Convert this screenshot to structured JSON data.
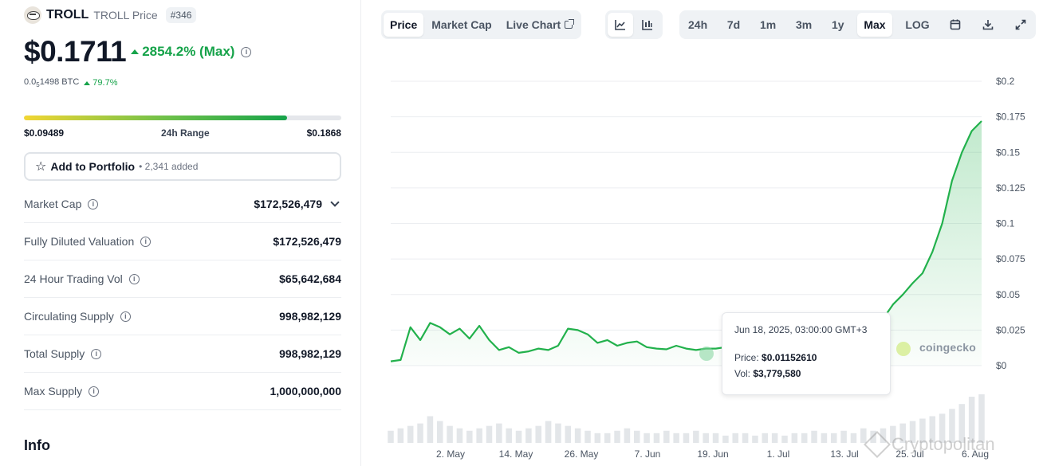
{
  "coin": {
    "name": "TROLL",
    "subtitle": "TROLL Price",
    "rank": "#346",
    "price": "$0.1711",
    "change": "2854.2% (Max)",
    "btc_prefix": "0.0",
    "btc_sub": "5",
    "btc_rest": "1498 BTC",
    "btc_change": "79.7%"
  },
  "range": {
    "low": "$0.09489",
    "label": "24h Range",
    "high": "$0.1868",
    "fill_fraction": 0.83
  },
  "portfolio": {
    "label": "Add to Portfolio",
    "added": "• 2,341 added"
  },
  "stats": [
    {
      "label": "Market Cap",
      "value": "$172,526,479"
    },
    {
      "label": "Fully Diluted Valuation",
      "value": "$172,526,479"
    },
    {
      "label": "24 Hour Trading Vol",
      "value": "$65,642,684"
    },
    {
      "label": "Circulating Supply",
      "value": "998,982,129"
    },
    {
      "label": "Total Supply",
      "value": "998,982,129"
    },
    {
      "label": "Max Supply",
      "value": "1,000,000,000"
    }
  ],
  "info_heading": "Info",
  "toolbar": {
    "view_tabs": [
      "Price",
      "Market Cap",
      "Live Chart"
    ],
    "active_view": "Price",
    "range_tabs": [
      "24h",
      "7d",
      "1m",
      "3m",
      "1y",
      "Max",
      "LOG"
    ],
    "active_range": "Max"
  },
  "tooltip": {
    "date": "Jun 18, 2025, 03:00:00 GMT+3",
    "price_label": "Price:",
    "price": "$0.01152610",
    "vol_label": "Vol:",
    "vol": "$3,779,580"
  },
  "branding": {
    "chart_logo": "coingecko",
    "watermark": "Cryptopolitan"
  },
  "colors": {
    "up": "#16a34a",
    "line": "#22b14c"
  },
  "chart_data": {
    "type": "area",
    "y_ticks": [
      "$0.2",
      "$0.175",
      "$0.15",
      "$0.125",
      "$0.1",
      "$0.075",
      "$0.05",
      "$0.025",
      "$0"
    ],
    "x_ticks": [
      "2. May",
      "14. May",
      "26. May",
      "7. Jun",
      "19. Jun",
      "1. Jul",
      "13. Jul",
      "25. Jul",
      "6. Aug"
    ],
    "ylim": [
      0,
      0.2
    ],
    "grid": true,
    "x_days": [
      0,
      2,
      4,
      6,
      8,
      10,
      12,
      14,
      16,
      18,
      20,
      22,
      24,
      26,
      28,
      30,
      32,
      34,
      36,
      38,
      40,
      42,
      44,
      46,
      48,
      50,
      52,
      54,
      56,
      58,
      60,
      62,
      64,
      66,
      68,
      70,
      72,
      74,
      76,
      78,
      80,
      82,
      84,
      86,
      88,
      90,
      92,
      94,
      96,
      98,
      100,
      102,
      104,
      106,
      108,
      110,
      112,
      114,
      116,
      118,
      120
    ],
    "price": [
      0.003,
      0.004,
      0.027,
      0.018,
      0.03,
      0.027,
      0.022,
      0.026,
      0.019,
      0.028,
      0.018,
      0.011,
      0.013,
      0.009,
      0.01,
      0.012,
      0.011,
      0.014,
      0.026,
      0.025,
      0.022,
      0.016,
      0.018,
      0.014,
      0.016,
      0.017,
      0.013,
      0.012,
      0.0115,
      0.014,
      0.012,
      0.011,
      0.012,
      0.012,
      0.013,
      0.011,
      0.01,
      0.012,
      0.01,
      0.011,
      0.013,
      0.014,
      0.012,
      0.011,
      0.013,
      0.012,
      0.011,
      0.016,
      0.012,
      0.014,
      0.033,
      0.043,
      0.05,
      0.058,
      0.065,
      0.08,
      0.1,
      0.13,
      0.15,
      0.165,
      0.172
    ],
    "volume": [
      0.25,
      0.3,
      0.35,
      0.4,
      0.55,
      0.45,
      0.35,
      0.3,
      0.25,
      0.3,
      0.35,
      0.4,
      0.3,
      0.25,
      0.3,
      0.35,
      0.45,
      0.4,
      0.35,
      0.3,
      0.25,
      0.2,
      0.2,
      0.25,
      0.3,
      0.25,
      0.2,
      0.2,
      0.25,
      0.2,
      0.2,
      0.25,
      0.2,
      0.2,
      0.15,
      0.2,
      0.2,
      0.15,
      0.2,
      0.2,
      0.15,
      0.2,
      0.2,
      0.25,
      0.2,
      0.2,
      0.25,
      0.2,
      0.3,
      0.25,
      0.3,
      0.35,
      0.4,
      0.45,
      0.5,
      0.55,
      0.6,
      0.7,
      0.8,
      0.95,
      1.0
    ]
  }
}
